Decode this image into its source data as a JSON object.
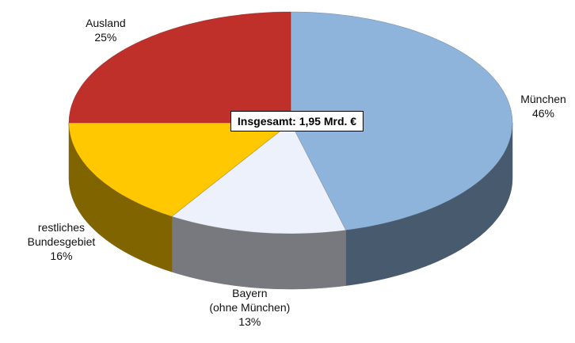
{
  "chart_data": {
    "type": "pie3d",
    "categories": [
      "München",
      "Bayern\n(ohne München)",
      "restliches\nBundesgebiet",
      "Ausland"
    ],
    "values": [
      46,
      13,
      16,
      25
    ],
    "value_labels": [
      "46%",
      "13%",
      "16%",
      "25%"
    ],
    "colors": [
      "#8fb4dc",
      "#edf1fb",
      "#ffc800",
      "#c0302a"
    ],
    "annotation": "Insgesamt: 1,95 Mrd. €"
  }
}
